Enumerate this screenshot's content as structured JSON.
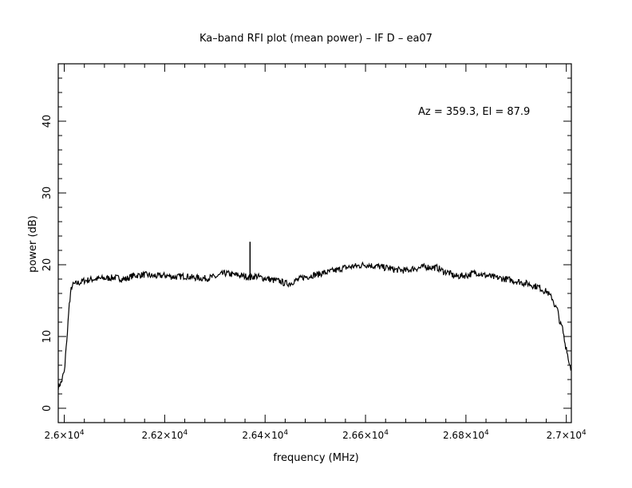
{
  "chart_data": {
    "type": "line",
    "title": "Ka–band RFI plot (mean power) – IF D – ea07",
    "xlabel": "frequency (MHz)",
    "ylabel": "power (dB)",
    "annotation": "Az = 359.3, El = 87.9",
    "xlim": [
      25988,
      27010
    ],
    "ylim": [
      -2,
      48
    ],
    "x_ticks": [
      {
        "value": 26000,
        "mantissa": "2.6",
        "exponent": "4"
      },
      {
        "value": 26200,
        "mantissa": "2.62",
        "exponent": "4"
      },
      {
        "value": 26400,
        "mantissa": "2.64",
        "exponent": "4"
      },
      {
        "value": 26600,
        "mantissa": "2.66",
        "exponent": "4"
      },
      {
        "value": 26800,
        "mantissa": "2.68",
        "exponent": "4"
      },
      {
        "value": 27000,
        "mantissa": "2.7",
        "exponent": "4"
      }
    ],
    "y_ticks": [
      0,
      10,
      20,
      30,
      40
    ],
    "grid": false,
    "series": [
      {
        "color": "#000000",
        "x": [
          25988,
          25993,
          26000,
          26005,
          26010,
          26015,
          26020,
          26030,
          26040,
          26060,
          26080,
          26100,
          26120,
          26140,
          26160,
          26180,
          26200,
          26220,
          26240,
          26260,
          26280,
          26300,
          26320,
          26340,
          26360,
          26370,
          26380,
          26400,
          26420,
          26430,
          26440,
          26450,
          26460,
          26480,
          26500,
          26520,
          26540,
          26560,
          26580,
          26600,
          26620,
          26640,
          26660,
          26680,
          26700,
          26720,
          26740,
          26760,
          26780,
          26800,
          26820,
          26840,
          26860,
          26880,
          26900,
          26920,
          26940,
          26960,
          26970,
          26980,
          26990,
          27000,
          27005,
          27010
        ],
        "y": [
          3.0,
          3.5,
          5.0,
          9.5,
          14.5,
          17.0,
          17.3,
          17.5,
          17.8,
          18.0,
          18.1,
          18.2,
          18.0,
          18.5,
          18.6,
          18.4,
          18.5,
          18.3,
          18.4,
          18.2,
          18.1,
          18.3,
          18.8,
          18.6,
          18.4,
          18.2,
          18.4,
          18.1,
          17.8,
          17.7,
          17.4,
          17.4,
          17.8,
          18.3,
          18.6,
          18.9,
          19.2,
          19.6,
          19.8,
          20.0,
          19.8,
          19.6,
          19.3,
          19.2,
          19.5,
          19.7,
          19.6,
          19.0,
          18.4,
          18.5,
          18.9,
          18.5,
          18.2,
          18.0,
          17.7,
          17.4,
          17.0,
          16.3,
          15.5,
          14.0,
          11.5,
          8.5,
          6.5,
          5.5
        ]
      }
    ],
    "spike": {
      "x": 26370,
      "y": 23.2
    }
  }
}
